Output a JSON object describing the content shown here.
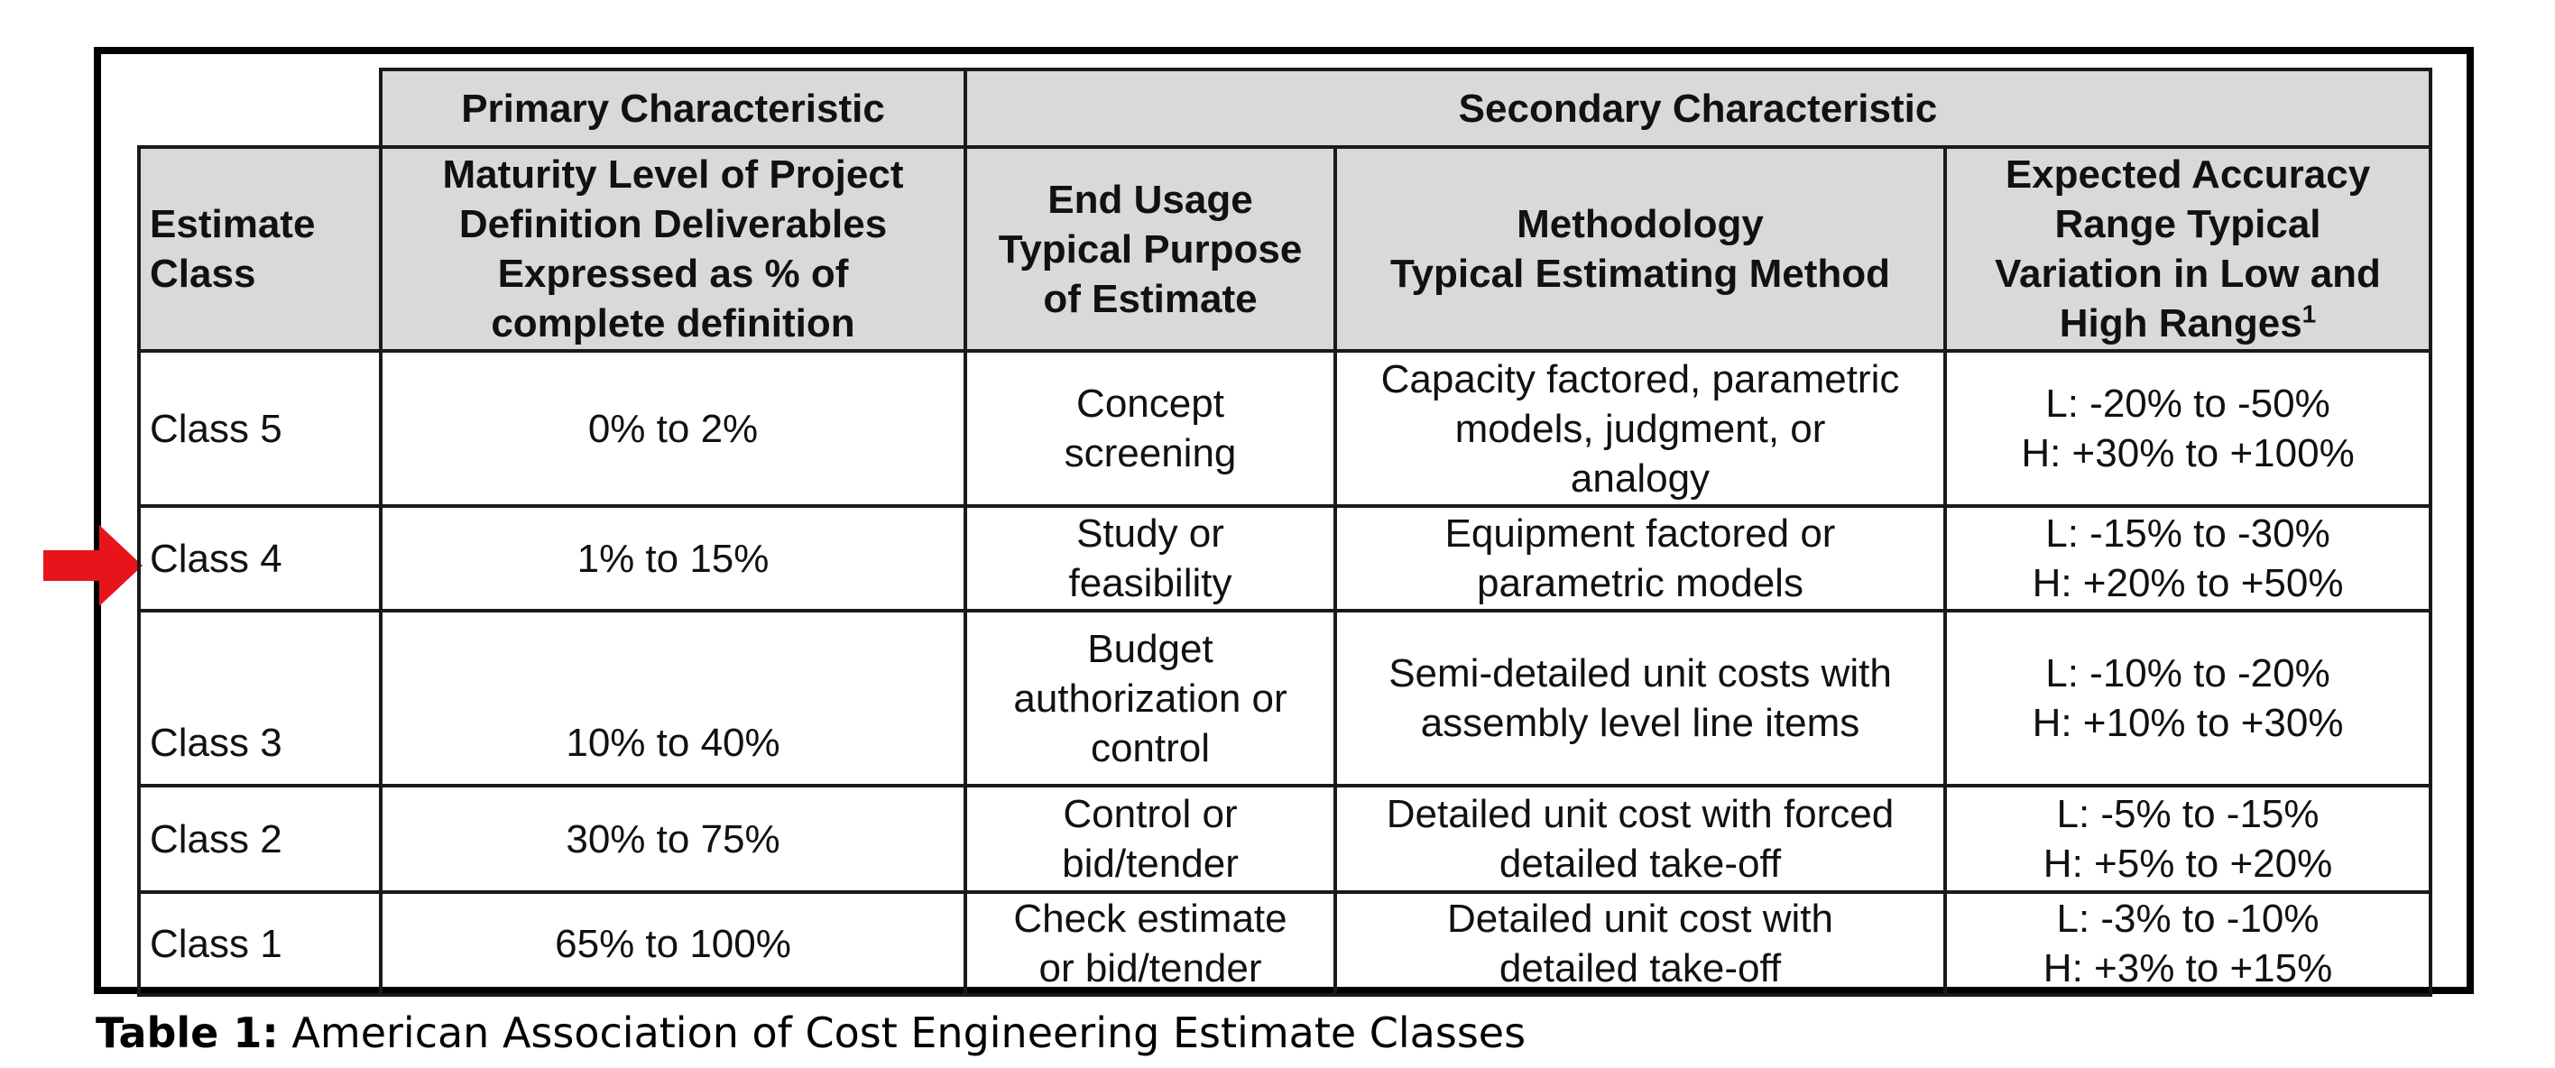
{
  "table": {
    "group_headers": {
      "primary": "Primary Characteristic",
      "secondary": "Secondary Characteristic"
    },
    "column_headers": {
      "estimate_class": "Estimate\nClass",
      "maturity": "Maturity Level of Project\nDefinition Deliverables\nExpressed as % of\ncomplete definition",
      "end_usage": "End Usage\nTypical Purpose\nof Estimate",
      "methodology": "Methodology\nTypical Estimating Method",
      "accuracy": "Expected Accuracy\nRange Typical\nVariation in Low and\nHigh Ranges",
      "accuracy_footnote": "1"
    },
    "rows": [
      {
        "estimate_class": "Class 5",
        "maturity": "0% to 2%",
        "end_usage": "Concept\nscreening",
        "methodology": "Capacity factored, parametric\nmodels, judgment, or\nanalogy",
        "accuracy": "L: -20% to -50%\nH: +30% to +100%"
      },
      {
        "estimate_class": "Class 4",
        "maturity": "1% to 15%",
        "end_usage": "Study or\nfeasibility",
        "methodology": "Equipment factored or\nparametric models",
        "accuracy": "L: -15% to -30%\nH: +20% to +50%"
      },
      {
        "estimate_class": "Class 3",
        "maturity": "10% to 40%",
        "end_usage": "Budget\nauthorization or\ncontrol",
        "methodology": "Semi-detailed unit costs with\nassembly level line items",
        "accuracy": "L: -10% to -20%\nH: +10% to +30%"
      },
      {
        "estimate_class": "Class 2",
        "maturity": "30% to 75%",
        "end_usage": "Control or\nbid/tender",
        "methodology": "Detailed unit cost with forced\ndetailed take-off",
        "accuracy": "L: -5% to -15%\nH: +5% to +20%"
      },
      {
        "estimate_class": "Class 1",
        "maturity": "65% to 100%",
        "end_usage": "Check estimate\nor bid/tender",
        "methodology": "Detailed unit cost with\ndetailed take-off",
        "accuracy": "L: -3% to -10%\nH: +3% to +15%"
      }
    ]
  },
  "caption": {
    "label": "Table 1:",
    "text": " American Association of Cost Engineering Estimate Classes"
  },
  "highlight_arrow": {
    "icon": "right-arrow-icon",
    "color": "#e8141b",
    "points_to_row": "Class 4"
  },
  "colors": {
    "header_bg": "#d9d9d9",
    "border": "#1a1a1a"
  }
}
